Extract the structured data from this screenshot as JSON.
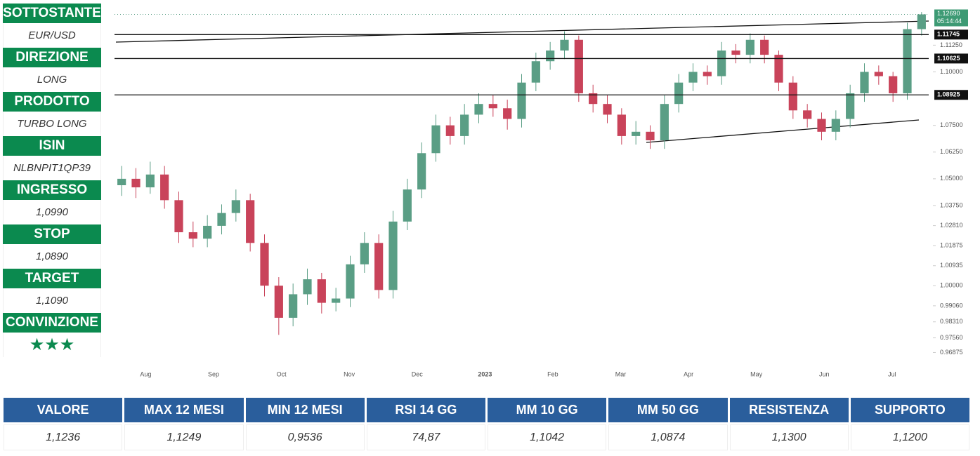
{
  "panel": [
    {
      "label": "SOTTOSTANTE",
      "value": "EUR/USD"
    },
    {
      "label": "DIREZIONE",
      "value": "LONG"
    },
    {
      "label": "PRODOTTO",
      "value": "TURBO LONG"
    },
    {
      "label": "ISIN",
      "value": "NLBNPIT1QP39"
    },
    {
      "label": "INGRESSO",
      "value": "1,0990"
    },
    {
      "label": "STOP",
      "value": "1,0890"
    },
    {
      "label": "TARGET",
      "value": "1,1090"
    },
    {
      "label": "CONVINZIONE",
      "value": "★★★"
    }
  ],
  "chart_data": {
    "type": "candlestick",
    "x_labels": [
      "Aug",
      "Sep",
      "Oct",
      "Nov",
      "Dec",
      "2023",
      "Feb",
      "Mar",
      "Apr",
      "May",
      "Jun",
      "Jul"
    ],
    "open": [
      1.047,
      1.05,
      1.046,
      1.052,
      1.04,
      1.025,
      1.022,
      1.028,
      1.034,
      1.04,
      1.02,
      1.0,
      0.985,
      0.996,
      1.003,
      0.992,
      0.994,
      1.01,
      1.02,
      0.998,
      1.03,
      1.045,
      1.062,
      1.075,
      1.07,
      1.08,
      1.085,
      1.083,
      1.078,
      1.095,
      1.105,
      1.11,
      1.115,
      1.09,
      1.085,
      1.08,
      1.07,
      1.072,
      1.068,
      1.085,
      1.095,
      1.1,
      1.098,
      1.11,
      1.108,
      1.115,
      1.108,
      1.095,
      1.082,
      1.078,
      1.072,
      1.078,
      1.09,
      1.1,
      1.098,
      1.09,
      1.12
    ],
    "high": [
      1.056,
      1.055,
      1.058,
      1.056,
      1.044,
      1.03,
      1.033,
      1.038,
      1.045,
      1.043,
      1.024,
      1.004,
      1.001,
      1.008,
      1.006,
      0.999,
      1.014,
      1.025,
      1.024,
      1.035,
      1.05,
      1.067,
      1.08,
      1.079,
      1.085,
      1.09,
      1.089,
      1.087,
      1.099,
      1.109,
      1.114,
      1.119,
      1.117,
      1.094,
      1.089,
      1.083,
      1.077,
      1.075,
      1.089,
      1.099,
      1.104,
      1.103,
      1.114,
      1.113,
      1.118,
      1.117,
      1.11,
      1.098,
      1.085,
      1.081,
      1.082,
      1.094,
      1.104,
      1.103,
      1.1,
      1.123,
      1.128
    ],
    "low": [
      1.042,
      1.041,
      1.043,
      1.036,
      1.02,
      1.018,
      1.018,
      1.024,
      1.03,
      1.016,
      0.995,
      0.977,
      0.981,
      0.991,
      0.987,
      0.988,
      0.99,
      1.006,
      0.994,
      0.994,
      1.026,
      1.041,
      1.058,
      1.066,
      1.066,
      1.076,
      1.079,
      1.073,
      1.074,
      1.091,
      1.101,
      1.106,
      1.086,
      1.081,
      1.076,
      1.066,
      1.066,
      1.064,
      1.064,
      1.081,
      1.091,
      1.094,
      1.094,
      1.104,
      1.104,
      1.104,
      1.091,
      1.078,
      1.074,
      1.068,
      1.068,
      1.074,
      1.086,
      1.094,
      1.086,
      1.087,
      1.117
    ],
    "close": [
      1.05,
      1.046,
      1.052,
      1.04,
      1.025,
      1.022,
      1.028,
      1.034,
      1.04,
      1.02,
      1.0,
      0.985,
      0.996,
      1.003,
      0.992,
      0.994,
      1.01,
      1.02,
      0.998,
      1.03,
      1.045,
      1.062,
      1.075,
      1.07,
      1.08,
      1.085,
      1.083,
      1.078,
      1.095,
      1.105,
      1.11,
      1.115,
      1.09,
      1.085,
      1.08,
      1.07,
      1.072,
      1.068,
      1.085,
      1.095,
      1.1,
      1.098,
      1.11,
      1.108,
      1.115,
      1.108,
      1.095,
      1.082,
      1.078,
      1.072,
      1.078,
      1.09,
      1.1,
      1.098,
      1.09,
      1.12,
      1.1269
    ],
    "up_color": "#5a9e85",
    "down_color": "#c9435a",
    "ylim": [
      0.963,
      1.131
    ],
    "yticks": [
      {
        "value": 1.1125,
        "label": "1.11250"
      },
      {
        "value": 1.1,
        "label": "1.10000"
      },
      {
        "value": 1.075,
        "label": "1.07500"
      },
      {
        "value": 1.0625,
        "label": "1.06250"
      },
      {
        "value": 1.05,
        "label": "1.05000"
      },
      {
        "value": 1.0375,
        "label": "1.03750"
      },
      {
        "value": 1.0281,
        "label": "1.02810"
      },
      {
        "value": 1.01875,
        "label": "1.01875"
      },
      {
        "value": 1.00935,
        "label": "1.00935"
      },
      {
        "value": 1.0,
        "label": "1.00000"
      },
      {
        "value": 0.9906,
        "label": "0.99060"
      },
      {
        "value": 0.9831,
        "label": "0.98310"
      },
      {
        "value": 0.9756,
        "label": "0.97560"
      },
      {
        "value": 0.96875,
        "label": "0.96875"
      }
    ],
    "levels": [
      1.11745,
      1.10625,
      1.08925
    ],
    "last_price": {
      "value": 1.1269,
      "label": "1.12690"
    },
    "countdown": "05:14:44"
  },
  "table": {
    "headers": [
      "VALORE",
      "MAX 12 MESI",
      "MIN 12 MESI",
      "RSI 14 GG",
      "MM 10 GG",
      "MM 50 GG",
      "RESISTENZA",
      "SUPPORTO"
    ],
    "values": [
      "1,1236",
      "1,1249",
      "0,9536",
      "74,87",
      "1,1042",
      "1,0874",
      "1,1300",
      "1,1200"
    ]
  }
}
